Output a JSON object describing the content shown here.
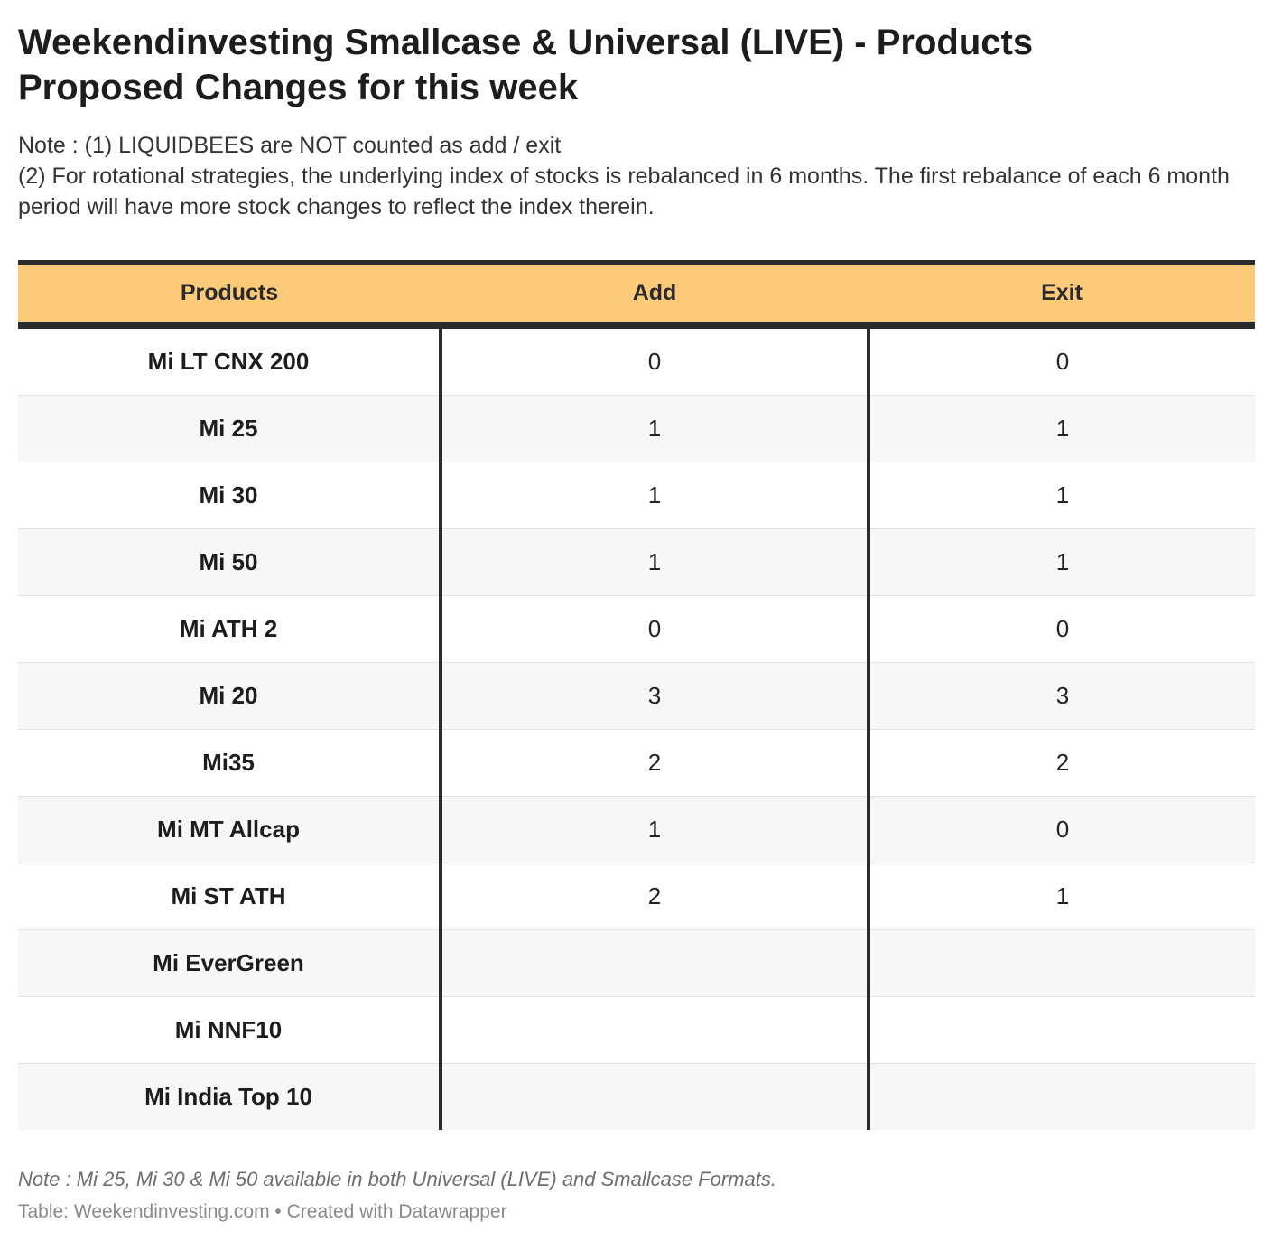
{
  "title_line1": "Weekendinvesting Smallcase & Universal (LIVE) - Products",
  "title_line2": "Proposed Changes for this week",
  "notes": {
    "line1": "Note : (1) LIQUIDBEES are NOT counted as add / exit",
    "line2": "(2) For rotational strategies, the underlying index of stocks is rebalanced in 6 months. The first rebalance of each 6 month period will have more stock changes to reflect the index therein."
  },
  "chart_data": {
    "type": "table",
    "columns": [
      "Products",
      "Add",
      "Exit"
    ],
    "rows": [
      [
        "Mi LT CNX 200",
        "0",
        "0"
      ],
      [
        "Mi 25",
        "1",
        "1"
      ],
      [
        "Mi 30",
        "1",
        "1"
      ],
      [
        "Mi 50",
        "1",
        "1"
      ],
      [
        "Mi ATH 2",
        "0",
        "0"
      ],
      [
        "Mi 20",
        "3",
        "3"
      ],
      [
        "Mi35",
        "2",
        "2"
      ],
      [
        "Mi MT Allcap",
        "1",
        "0"
      ],
      [
        "Mi ST ATH",
        "2",
        "1"
      ],
      [
        "Mi EverGreen",
        "",
        ""
      ],
      [
        "Mi NNF10",
        "",
        ""
      ],
      [
        "Mi India Top 10",
        "",
        ""
      ]
    ]
  },
  "footer": {
    "note": "Note : Mi 25, Mi 30 & Mi 50 available in both Universal (LIVE) and Smallcase Formats.",
    "source": "Table: Weekendinvesting.com • Created with Datawrapper"
  },
  "colors": {
    "header_bg": "#fdca7a",
    "rule": "#2c2c2c",
    "stripe": "#f7f7f7"
  }
}
